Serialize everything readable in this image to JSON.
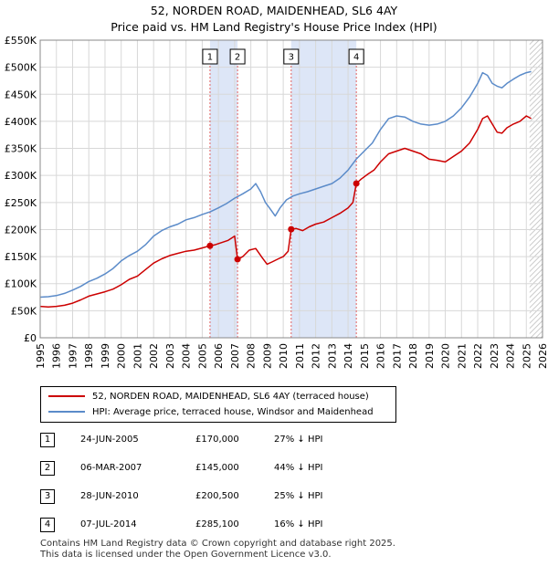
{
  "title": "52, NORDEN ROAD, MAIDENHEAD, SL6 4AY",
  "subtitle": "Price paid vs. HM Land Registry's House Price Index (HPI)",
  "colors": {
    "price_paid": "#cc0000",
    "hpi": "#5b8bc9",
    "shade": "#dde6f7",
    "grid": "#d8d8d8",
    "vline": "#e06060"
  },
  "chart_data": {
    "type": "line",
    "title": "52, NORDEN ROAD, MAIDENHEAD, SL6 4AY",
    "subtitle": "Price paid vs. HM Land Registry's House Price Index (HPI)",
    "xlabel": "",
    "ylabel": "",
    "xlim": [
      1995,
      2026
    ],
    "ylim": [
      0,
      550000
    ],
    "grid": true,
    "yticks": [
      0,
      50000,
      100000,
      150000,
      200000,
      250000,
      300000,
      350000,
      400000,
      450000,
      500000,
      550000
    ],
    "ytick_labels": [
      "£0",
      "£50K",
      "£100K",
      "£150K",
      "£200K",
      "£250K",
      "£300K",
      "£350K",
      "£400K",
      "£450K",
      "£500K",
      "£550K"
    ],
    "xticks": [
      1995,
      1996,
      1997,
      1998,
      1999,
      2000,
      2001,
      2002,
      2003,
      2004,
      2005,
      2006,
      2007,
      2008,
      2009,
      2010,
      2011,
      2012,
      2013,
      2014,
      2015,
      2016,
      2017,
      2018,
      2019,
      2020,
      2021,
      2022,
      2023,
      2024,
      2025,
      2026
    ],
    "xtick_labels": [
      "1995",
      "1996",
      "1997",
      "1998",
      "1999",
      "2000",
      "2001",
      "2002",
      "2003",
      "2004",
      "2005",
      "2006",
      "2007",
      "2008",
      "2009",
      "2010",
      "2011",
      "2012",
      "2013",
      "2014",
      "2015",
      "2016",
      "2017",
      "2018",
      "2019",
      "2020",
      "2021",
      "2022",
      "2023",
      "2024",
      "2025",
      "2026"
    ],
    "shaded_periods": [
      [
        2005.48,
        2007.18
      ],
      [
        2010.49,
        2014.51
      ]
    ],
    "hatched_from": 2025.2,
    "series": [
      {
        "name": "52, NORDEN ROAD, MAIDENHEAD, SL6 4AY (terraced house)",
        "color": "#cc0000",
        "x": [
          1995.0,
          1995.5,
          1996.0,
          1996.5,
          1997.0,
          1997.5,
          1998.0,
          1998.5,
          1999.0,
          1999.5,
          2000.0,
          2000.5,
          2001.0,
          2001.5,
          2002.0,
          2002.5,
          2003.0,
          2003.5,
          2004.0,
          2004.5,
          2005.0,
          2005.48,
          2005.8,
          2006.2,
          2006.6,
          2007.0,
          2007.18,
          2007.5,
          2007.9,
          2008.3,
          2008.7,
          2009.0,
          2009.3,
          2009.7,
          2010.0,
          2010.3,
          2010.49,
          2010.8,
          2011.2,
          2011.6,
          2012.0,
          2012.5,
          2013.0,
          2013.5,
          2014.0,
          2014.3,
          2014.51,
          2014.8,
          2015.2,
          2015.6,
          2016.0,
          2016.5,
          2017.0,
          2017.5,
          2018.0,
          2018.5,
          2019.0,
          2019.5,
          2020.0,
          2020.5,
          2021.0,
          2021.5,
          2022.0,
          2022.3,
          2022.6,
          2022.9,
          2023.2,
          2023.5,
          2023.8,
          2024.2,
          2024.6,
          2025.0,
          2025.3
        ],
        "y": [
          58000,
          57000,
          58000,
          60000,
          64000,
          70000,
          77000,
          81000,
          85000,
          90000,
          98000,
          108000,
          114000,
          126000,
          138000,
          146000,
          152000,
          156000,
          160000,
          162000,
          166000,
          170000,
          172000,
          176000,
          180000,
          188000,
          145000,
          150000,
          162000,
          165000,
          148000,
          136000,
          140000,
          146000,
          150000,
          160000,
          200500,
          202000,
          198000,
          205000,
          210000,
          214000,
          222000,
          230000,
          240000,
          250000,
          285100,
          293000,
          302000,
          310000,
          325000,
          340000,
          345000,
          350000,
          345000,
          340000,
          330000,
          328000,
          325000,
          335000,
          345000,
          360000,
          385000,
          405000,
          410000,
          395000,
          380000,
          378000,
          388000,
          395000,
          400000,
          410000,
          405000
        ]
      },
      {
        "name": "HPI: Average price, terraced house, Windsor and Maidenhead",
        "color": "#5b8bc9",
        "x": [
          1995.0,
          1995.5,
          1996.0,
          1996.5,
          1997.0,
          1997.5,
          1998.0,
          1998.5,
          1999.0,
          1999.5,
          2000.0,
          2000.5,
          2001.0,
          2001.5,
          2002.0,
          2002.5,
          2003.0,
          2003.5,
          2004.0,
          2004.5,
          2005.0,
          2005.5,
          2006.0,
          2006.5,
          2007.0,
          2007.5,
          2008.0,
          2008.3,
          2008.6,
          2008.9,
          2009.2,
          2009.5,
          2009.8,
          2010.2,
          2010.6,
          2011.0,
          2011.5,
          2012.0,
          2012.5,
          2013.0,
          2013.5,
          2014.0,
          2014.5,
          2015.0,
          2015.5,
          2016.0,
          2016.5,
          2017.0,
          2017.5,
          2018.0,
          2018.5,
          2019.0,
          2019.5,
          2020.0,
          2020.5,
          2021.0,
          2021.5,
          2022.0,
          2022.3,
          2022.6,
          2022.9,
          2023.2,
          2023.5,
          2023.8,
          2024.2,
          2024.6,
          2025.0,
          2025.3
        ],
        "y": [
          75000,
          76000,
          78000,
          82000,
          88000,
          95000,
          104000,
          110000,
          118000,
          128000,
          142000,
          152000,
          160000,
          172000,
          188000,
          198000,
          205000,
          210000,
          218000,
          222000,
          228000,
          233000,
          240000,
          248000,
          258000,
          266000,
          275000,
          285000,
          270000,
          250000,
          238000,
          225000,
          240000,
          255000,
          262000,
          266000,
          270000,
          275000,
          280000,
          285000,
          295000,
          310000,
          330000,
          345000,
          360000,
          385000,
          405000,
          410000,
          408000,
          400000,
          395000,
          393000,
          395000,
          400000,
          410000,
          425000,
          445000,
          470000,
          490000,
          485000,
          470000,
          465000,
          462000,
          470000,
          478000,
          485000,
          490000,
          492000
        ]
      }
    ],
    "sales": [
      {
        "label": "1",
        "x": 2005.48,
        "price": 170000
      },
      {
        "label": "2",
        "x": 2007.18,
        "price": 145000
      },
      {
        "label": "3",
        "x": 2010.49,
        "price": 200500
      },
      {
        "label": "4",
        "x": 2014.51,
        "price": 285100
      }
    ]
  },
  "legend": {
    "items": [
      {
        "label": "52, NORDEN ROAD, MAIDENHEAD, SL6 4AY (terraced house)"
      },
      {
        "label": "HPI: Average price, terraced house, Windsor and Maidenhead"
      }
    ]
  },
  "sales_table": [
    {
      "num": "1",
      "date": "24-JUN-2005",
      "price": "£170,000",
      "pct": "27% ↓ HPI"
    },
    {
      "num": "2",
      "date": "06-MAR-2007",
      "price": "£145,000",
      "pct": "44% ↓ HPI"
    },
    {
      "num": "3",
      "date": "28-JUN-2010",
      "price": "£200,500",
      "pct": "25% ↓ HPI"
    },
    {
      "num": "4",
      "date": "07-JUL-2014",
      "price": "£285,100",
      "pct": "16% ↓ HPI"
    }
  ],
  "footer": {
    "line1": "Contains HM Land Registry data © Crown copyright and database right 2025.",
    "line2": "This data is licensed under the Open Government Licence v3.0."
  }
}
